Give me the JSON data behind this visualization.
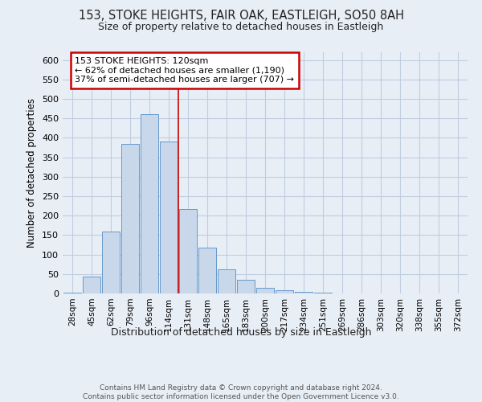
{
  "title_line1": "153, STOKE HEIGHTS, FAIR OAK, EASTLEIGH, SO50 8AH",
  "title_line2": "Size of property relative to detached houses in Eastleigh",
  "xlabel": "Distribution of detached houses by size in Eastleigh",
  "ylabel": "Number of detached properties",
  "categories": [
    "28sqm",
    "45sqm",
    "62sqm",
    "79sqm",
    "96sqm",
    "114sqm",
    "131sqm",
    "148sqm",
    "165sqm",
    "183sqm",
    "200sqm",
    "217sqm",
    "234sqm",
    "251sqm",
    "269sqm",
    "286sqm",
    "303sqm",
    "320sqm",
    "338sqm",
    "355sqm",
    "372sqm"
  ],
  "values": [
    3,
    43,
    159,
    385,
    460,
    390,
    217,
    118,
    63,
    36,
    14,
    8,
    4,
    3,
    1,
    0,
    0,
    0,
    1,
    0,
    0
  ],
  "bar_color": "#c8d8ea",
  "bar_edge_color": "#6699cc",
  "grid_color": "#c0cde0",
  "background_color": "#e8eef6",
  "vline_color": "#cc0000",
  "annotation_text": "153 STOKE HEIGHTS: 120sqm\n← 62% of detached houses are smaller (1,190)\n37% of semi-detached houses are larger (707) →",
  "annotation_box_color": "#ffffff",
  "annotation_box_edge": "#cc0000",
  "footer_line1": "Contains HM Land Registry data © Crown copyright and database right 2024.",
  "footer_line2": "Contains public sector information licensed under the Open Government Licence v3.0.",
  "ylim": [
    0,
    620
  ],
  "yticks": [
    0,
    50,
    100,
    150,
    200,
    250,
    300,
    350,
    400,
    450,
    500,
    550,
    600
  ]
}
